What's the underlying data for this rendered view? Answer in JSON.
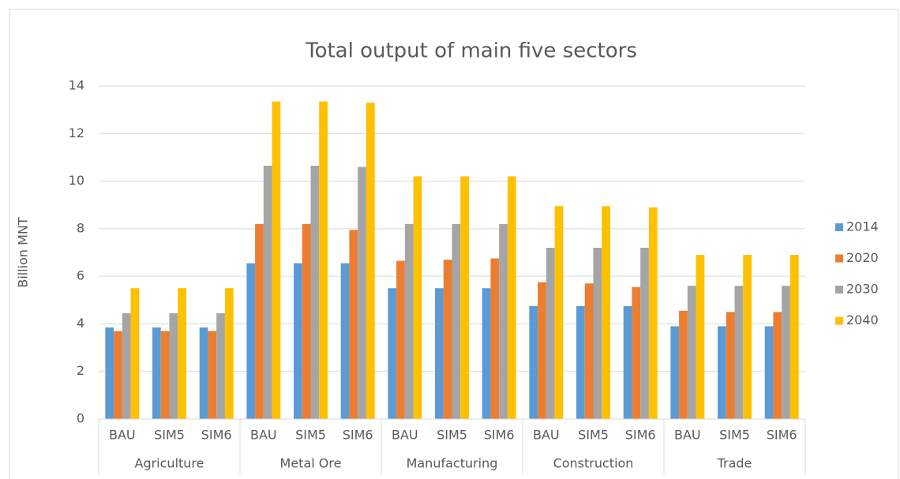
{
  "chart_data": {
    "type": "bar",
    "title": "Total output of main five sectors",
    "y_label": "Billion MNT",
    "categories": [
      "BAU",
      "SIM5",
      "SIM6",
      "BAU",
      "SIM5",
      "SIM6",
      "BAU",
      "SIM5",
      "SIM6",
      "BAU",
      "SIM5",
      "SIM6",
      "BAU",
      "SIM5",
      "SIM6"
    ],
    "groups": [
      "Agriculture",
      "Metal Ore",
      "Manufacturing",
      "Construction",
      "Trade"
    ],
    "series": [
      {
        "name": "2014",
        "color": "#5b9bd5",
        "values": [
          3.85,
          3.85,
          3.85,
          6.55,
          6.55,
          6.55,
          5.5,
          5.5,
          5.5,
          4.75,
          4.75,
          4.75,
          3.9,
          3.9,
          3.9
        ]
      },
      {
        "name": "2020",
        "color": "#ed7d31",
        "values": [
          3.7,
          3.7,
          3.7,
          8.2,
          8.2,
          7.95,
          6.65,
          6.7,
          6.75,
          5.75,
          5.7,
          5.55,
          4.55,
          4.5,
          4.5
        ]
      },
      {
        "name": "2030",
        "color": "#a5a5a5",
        "values": [
          4.45,
          4.45,
          4.45,
          10.65,
          10.65,
          10.6,
          8.2,
          8.2,
          8.2,
          7.2,
          7.2,
          7.2,
          5.6,
          5.6,
          5.6
        ]
      },
      {
        "name": "2040",
        "color": "#ffc000",
        "values": [
          5.5,
          5.5,
          5.5,
          13.35,
          13.35,
          13.3,
          10.2,
          10.2,
          10.2,
          8.95,
          8.95,
          8.9,
          6.9,
          6.9,
          6.9
        ]
      }
    ],
    "ylim": [
      0,
      14
    ],
    "yticks": [
      0,
      2,
      4,
      6,
      8,
      10,
      12,
      14
    ],
    "grid": true,
    "legend": "right"
  }
}
